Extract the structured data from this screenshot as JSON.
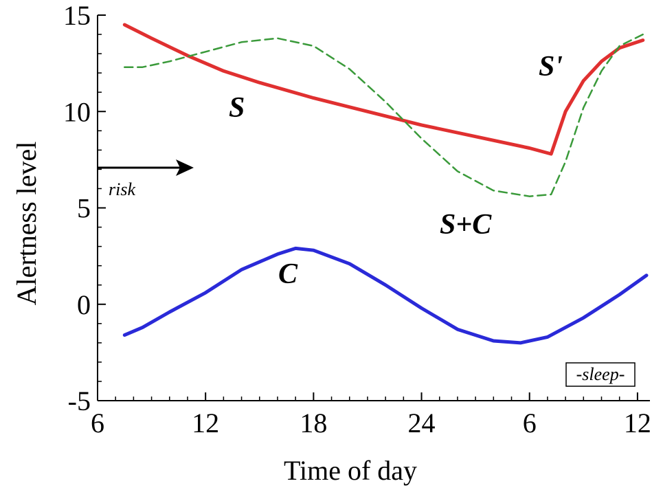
{
  "chart_data": {
    "type": "line",
    "xlabel": "Time of day",
    "ylabel": "Alertness level",
    "x_tick_labels": [
      "6",
      "12",
      "18",
      "24",
      "6",
      "12"
    ],
    "y_tick_labels": [
      "-5",
      "0",
      "5",
      "10",
      "15"
    ],
    "xlim": [
      6,
      36.5
    ],
    "ylim": [
      -5,
      15
    ],
    "grid": false,
    "series": [
      {
        "name": "S",
        "color": "#e03030",
        "dash": "solid",
        "x": [
          7.5,
          9,
          11,
          13,
          15,
          18,
          21,
          24,
          27,
          30,
          31.2,
          32,
          33,
          34,
          35,
          36.3
        ],
        "y": [
          14.5,
          13.8,
          12.9,
          12.1,
          11.5,
          10.7,
          10.0,
          9.3,
          8.7,
          8.1,
          7.8,
          10.0,
          11.6,
          12.6,
          13.3,
          13.7
        ]
      },
      {
        "name": "S+C",
        "color": "#3a9a3a",
        "dash": "dashed",
        "x": [
          7.5,
          8.5,
          10,
          12,
          14,
          16,
          18,
          20,
          22,
          24,
          26,
          28,
          30,
          31.2,
          32,
          33,
          34,
          35,
          36.3
        ],
        "y": [
          12.3,
          12.3,
          12.6,
          13.1,
          13.6,
          13.8,
          13.4,
          12.2,
          10.5,
          8.6,
          6.9,
          5.9,
          5.6,
          5.7,
          7.4,
          10.2,
          12.1,
          13.4,
          14.0
        ]
      },
      {
        "name": "C",
        "color": "#2a2ad8",
        "dash": "solid",
        "x": [
          7.5,
          8.5,
          10,
          12,
          14,
          16,
          17,
          18,
          20,
          22,
          24,
          26,
          28,
          29.5,
          31,
          33,
          35,
          36.5
        ],
        "y": [
          -1.6,
          -1.2,
          -0.4,
          0.6,
          1.8,
          2.6,
          2.9,
          2.8,
          2.1,
          1.0,
          -0.2,
          -1.3,
          -1.9,
          -2.0,
          -1.7,
          -0.7,
          0.5,
          1.5
        ]
      }
    ],
    "annotations": {
      "s_label": "S",
      "s_prime_label": "S'",
      "sc_label": "S+C",
      "c_label": "C",
      "risk_label": "risk",
      "sleep_label": "-sleep-"
    }
  }
}
